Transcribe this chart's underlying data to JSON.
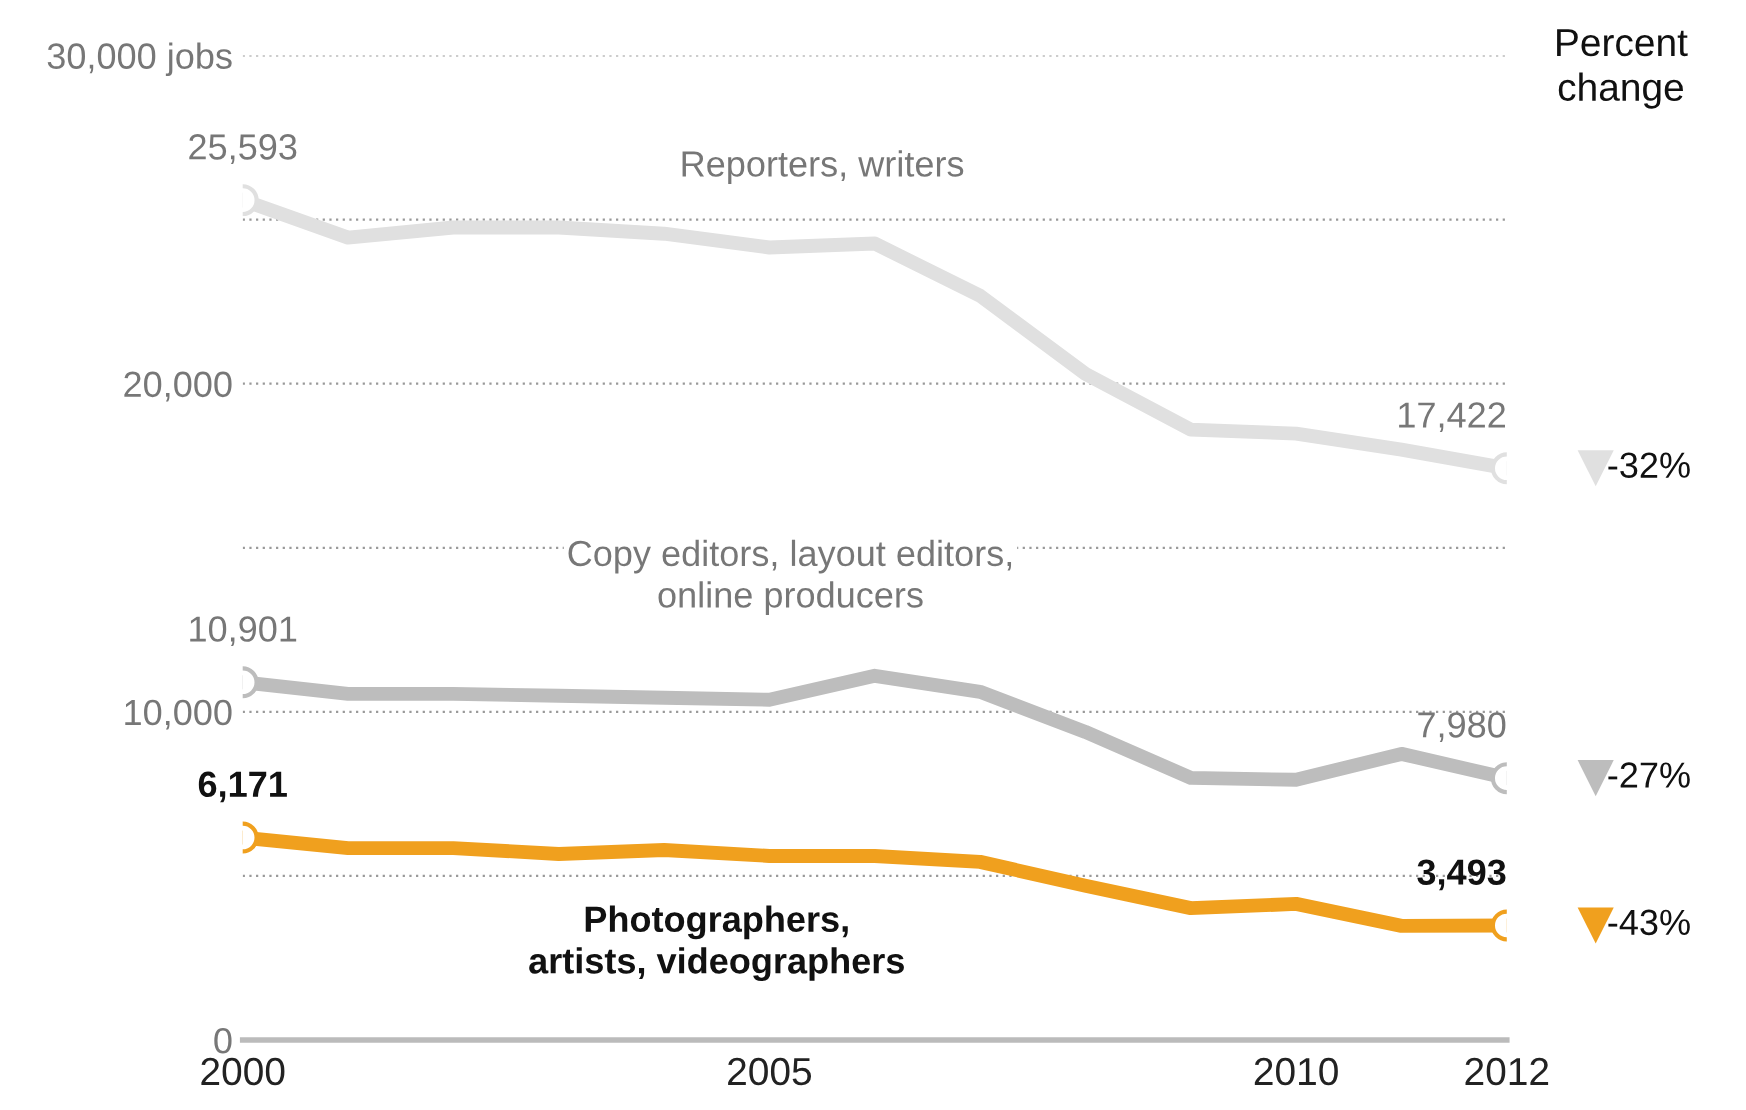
{
  "chart_data": {
    "type": "line",
    "x": [
      2000,
      2001,
      2002,
      2003,
      2004,
      2005,
      2006,
      2007,
      2008,
      2009,
      2010,
      2011,
      2012
    ],
    "series": [
      {
        "name": "Reporters, writers",
        "color": "#e0e0e0",
        "values": [
          25593,
          24450,
          24760,
          24760,
          24570,
          24150,
          24270,
          22680,
          20300,
          18600,
          18480,
          17990,
          17422
        ],
        "value_labels": [
          "25,593",
          null,
          null,
          null,
          null,
          null,
          null,
          null,
          null,
          null,
          null,
          null,
          "17,422"
        ]
      },
      {
        "name": "Copy editors, layout editors,\nonline producers",
        "color": "#bdbdbd",
        "values": [
          10901,
          10550,
          10550,
          10490,
          10430,
          10370,
          11100,
          10610,
          9390,
          7990,
          7930,
          8720,
          7980
        ],
        "value_labels": [
          "10,901",
          null,
          null,
          null,
          null,
          null,
          null,
          null,
          null,
          null,
          null,
          null,
          "7,980"
        ]
      },
      {
        "name": "Photographers,\nartists, videographers",
        "color": "#f0a01e",
        "values": [
          6171,
          5850,
          5850,
          5670,
          5790,
          5610,
          5610,
          5430,
          4700,
          4020,
          4150,
          3480,
          3493
        ],
        "value_labels": [
          "6,171",
          null,
          null,
          null,
          null,
          null,
          null,
          null,
          null,
          null,
          null,
          null,
          "3,493"
        ]
      }
    ],
    "xlim": [
      2000,
      2012
    ],
    "xticks": [
      2000,
      2005,
      2010,
      2012
    ],
    "ylim": [
      0,
      30000
    ],
    "yticks": [
      0,
      {
        "value": 5000,
        "label": null
      },
      {
        "value": 10000,
        "label": "10,000"
      },
      {
        "value": 15000,
        "label": null
      },
      {
        "value": 20000,
        "label": "20,000"
      },
      {
        "value": 25000,
        "label": null
      },
      {
        "value": 30000,
        "label": "30,000 jobs"
      }
    ],
    "grid": "y",
    "line_style": "solid",
    "annotations": [
      "Percent\nchange",
      "-32%",
      "-27%",
      "-43%"
    ]
  }
}
